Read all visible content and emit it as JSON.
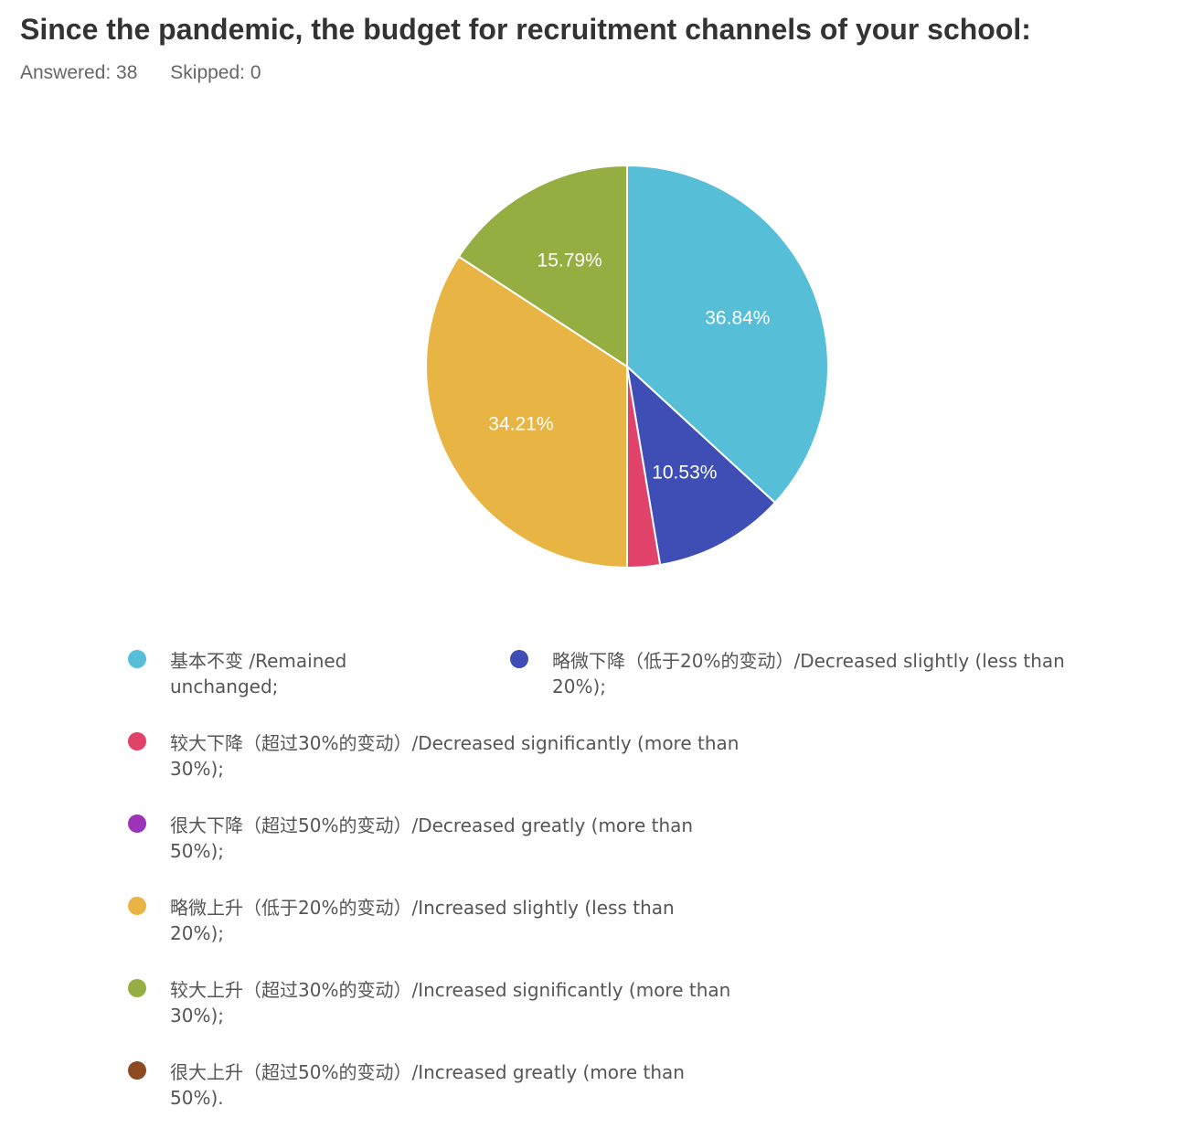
{
  "header": {
    "title": "Since the pandemic, the budget for recruitment channels of your school:",
    "answered": "Answered: 38",
    "skipped": "Skipped: 0"
  },
  "chart_data": {
    "type": "pie",
    "title": "Since the pandemic, the budget for recruitment channels of your school:",
    "series": [
      {
        "name": "基本不变 /Remained unchanged;",
        "value": 36.84,
        "label": "36.84%",
        "color": "#56bed7"
      },
      {
        "name": "略微下降（低于20%的变动）/Decreased slightly (less than 20%);",
        "value": 10.53,
        "label": "10.53%",
        "color": "#3e4eb5"
      },
      {
        "name": "较大下降（超过30%的变动）/Decreased significantly (more than 30%);",
        "value": 2.63,
        "label": "",
        "color": "#e0426a"
      },
      {
        "name": "很大下降（超过50%的变动）/Decreased greatly (more than 50%);",
        "value": 0,
        "label": "",
        "color": "#9b34b8"
      },
      {
        "name": "略微上升（低于20%的变动）/Increased slightly (less than 20%);",
        "value": 34.21,
        "label": "34.21%",
        "color": "#e8b444"
      },
      {
        "name": "较大上升（超过30%的变动）/Increased significantly (more than 30%);",
        "value": 15.79,
        "label": "15.79%",
        "color": "#95ae42"
      },
      {
        "name": "很大上升（超过50%的变动）/Increased greatly (more than 50%).",
        "value": 0,
        "label": "",
        "color": "#8b4a21"
      }
    ],
    "legend_placement": "bottom"
  },
  "legend": {
    "items": [
      {
        "line1": "基本不变 /Remained",
        "line2": "unchanged;"
      },
      {
        "line1": "略微下降（低于20%的变动）/Decreased slightly (less than",
        "line2": "20%);"
      },
      {
        "line1": "较大下降（超过30%的变动）/Decreased significantly (more than",
        "line2": "30%);"
      },
      {
        "line1": "很大下降（超过50%的变动）/Decreased greatly (more than",
        "line2": "50%);"
      },
      {
        "line1": "略微上升（低于20%的变动）/Increased slightly (less than",
        "line2": "20%);"
      },
      {
        "line1": "较大上升（超过30%的变动）/Increased significantly (more than",
        "line2": "30%);"
      },
      {
        "line1": "很大上升（超过50%的变动）/Increased greatly (more than",
        "line2": "50%)."
      }
    ]
  }
}
